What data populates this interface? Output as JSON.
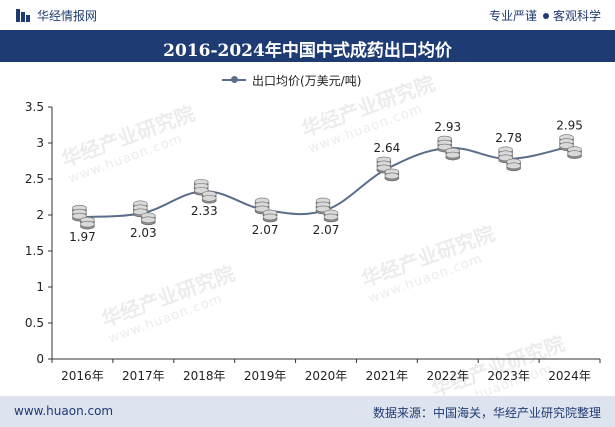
{
  "header": {
    "brand": "华经情报网",
    "tag1": "专业严谨",
    "tag2": "客观科学",
    "logo_icon": "bar-logo-icon"
  },
  "title": "2016-2024年中国中式成药出口均价",
  "watermark": {
    "main": "华经产业研究院",
    "sub": "www.huaon.com"
  },
  "footer": {
    "url": "www.huaon.com",
    "source": "数据来源：中国海关，华经产业研究院整理"
  },
  "colors": {
    "header_bg": "#1f3b73",
    "line": "#5a6e8c",
    "footer_bg": "#dde3ef"
  },
  "chart_data": {
    "type": "line",
    "categories": [
      "2016年",
      "2017年",
      "2018年",
      "2019年",
      "2020年",
      "2021年",
      "2022年",
      "2023年",
      "2024年"
    ],
    "series": [
      {
        "name": "出口均价(万美元/吨)",
        "values": [
          1.97,
          2.03,
          2.33,
          2.07,
          2.07,
          2.64,
          2.93,
          2.78,
          2.95
        ]
      }
    ],
    "value_labels": [
      "1.97",
      "2.03",
      "2.33",
      "2.07",
      "2.07",
      "2.64",
      "2.93",
      "2.78",
      "2.95"
    ],
    "y_ticks": [
      "0",
      "0.5",
      "1",
      "1.5",
      "2",
      "2.5",
      "3",
      "3.5"
    ],
    "ylim": [
      0,
      3.5
    ],
    "grid": false,
    "legend_position": "top",
    "marker": "coin-stack",
    "smooth": true
  }
}
